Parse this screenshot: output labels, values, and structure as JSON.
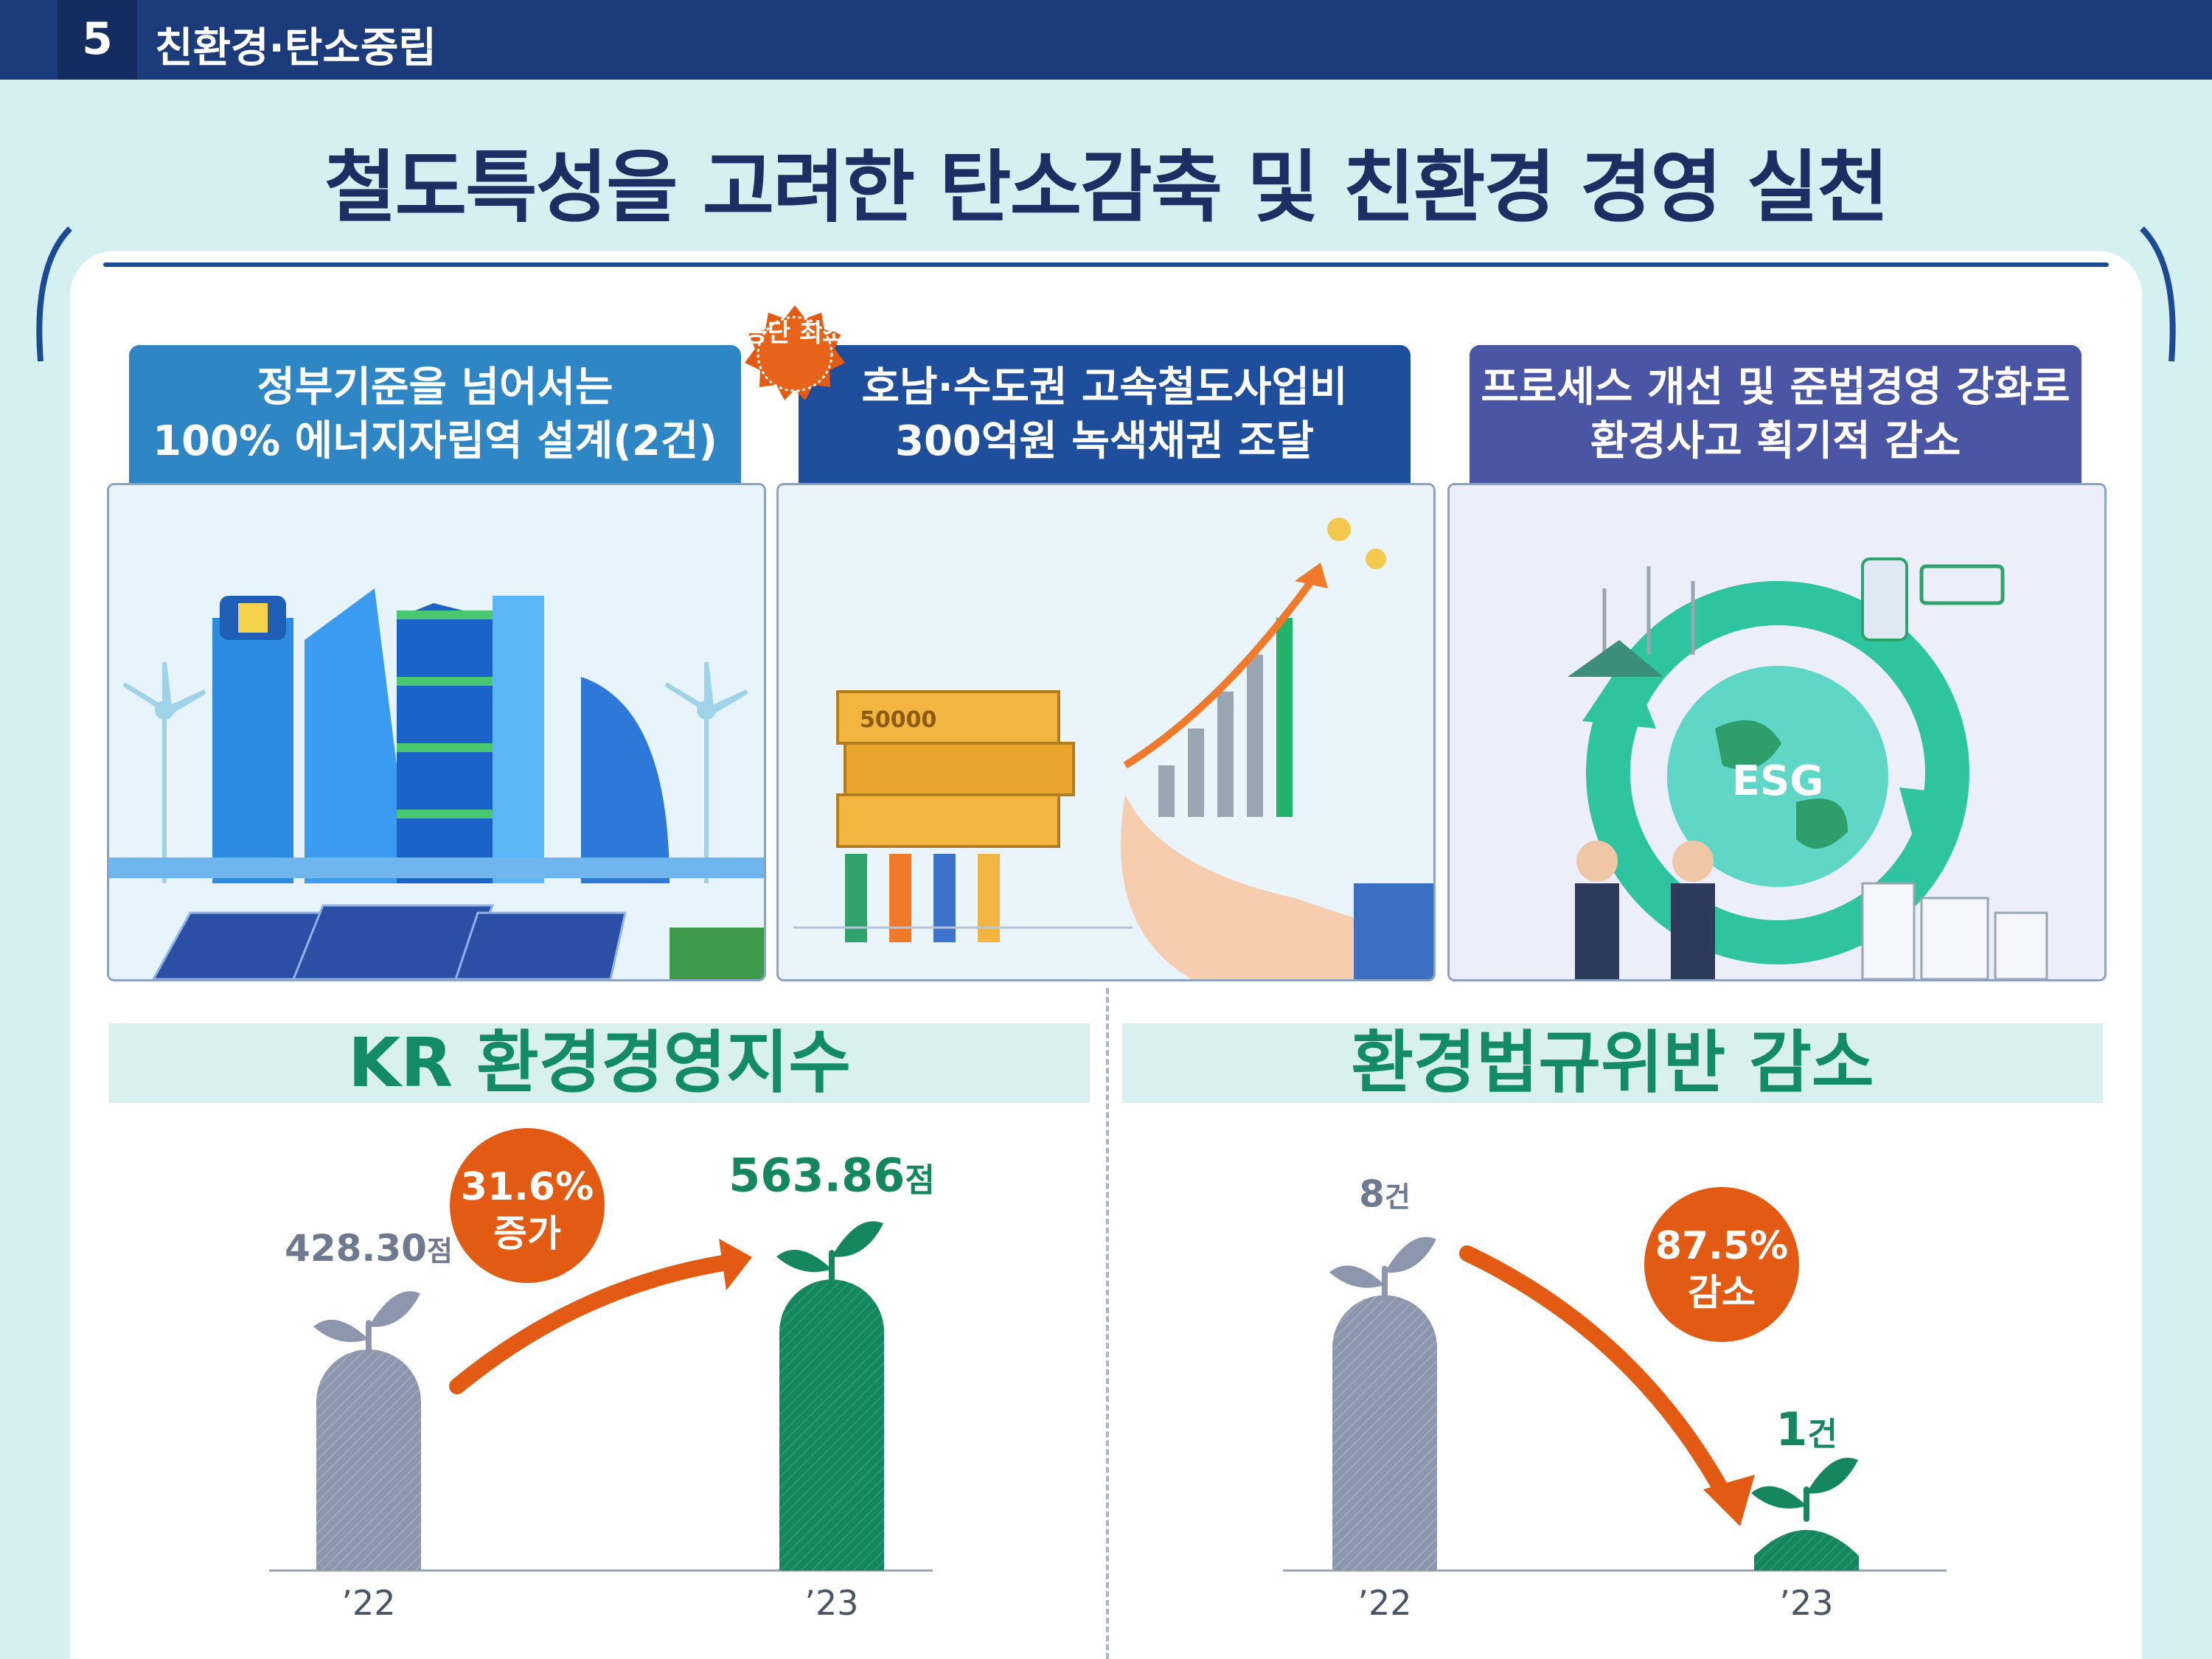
{
  "header": {
    "section_number": "5",
    "section_title": "친환경·탄소중립"
  },
  "title": "철도특성을 고려한 탄소감축 및 친환경 경영 실천",
  "panels": [
    {
      "line1": "정부기준을 넘어서는",
      "line2": "100% 에너지자립역 설계(2건)",
      "color": "#2f86c4"
    },
    {
      "line1": "호남·수도권 고속철도사업비",
      "line2": "300억원 녹색채권 조달",
      "color": "#1f4f9c",
      "badge": "공단 최초"
    },
    {
      "line1": "프로세스 개선 및 준법경영 강화로",
      "line2": "환경사고 획기적 감소",
      "color": "#4a56a3"
    }
  ],
  "illustration_labels": {
    "bill": "50000",
    "globe": "ESG"
  },
  "colors": {
    "gray_bar": "#8c97ad",
    "green_bar": "#14875f",
    "orange": "#e35a12",
    "heading_green": "#138b69"
  },
  "chart_data": [
    {
      "type": "bar",
      "title": "KR 환경경영지수",
      "categories": [
        "’22",
        "’23"
      ],
      "values": [
        428.3,
        563.86
      ],
      "value_labels": [
        "428.30",
        "563.86"
      ],
      "unit": "점",
      "change_label": "31.6%",
      "change_word": "증가",
      "ylim": [
        0,
        600
      ]
    },
    {
      "type": "bar",
      "title": "환경법규위반 감소",
      "categories": [
        "’22",
        "’23"
      ],
      "values": [
        8,
        1
      ],
      "value_labels": [
        "8",
        "1"
      ],
      "unit": "건",
      "change_label": "87.5%",
      "change_word": "감소",
      "ylim": [
        0,
        9
      ]
    }
  ]
}
